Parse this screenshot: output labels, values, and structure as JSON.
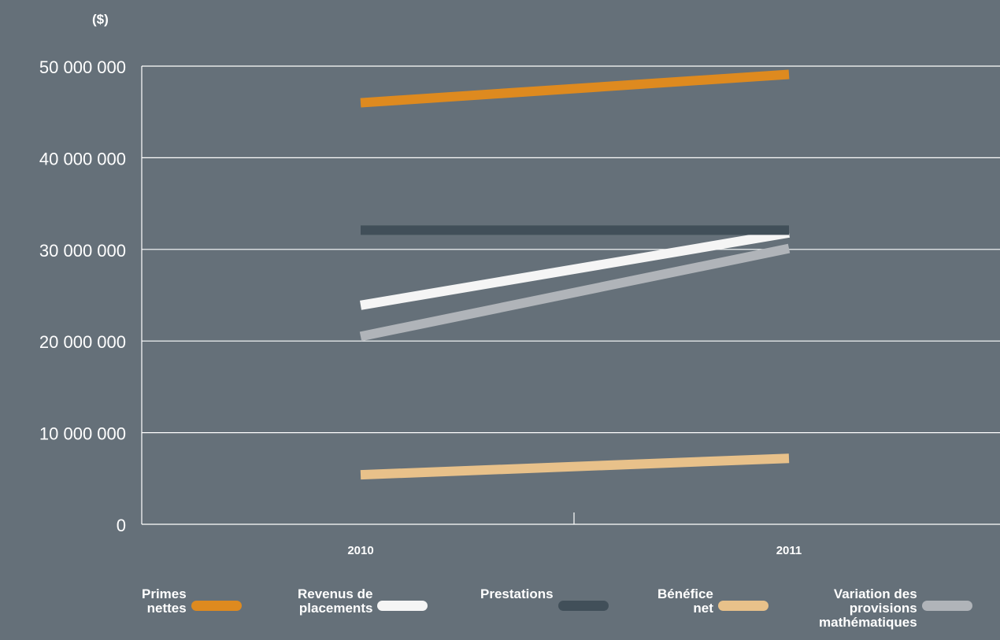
{
  "chart_data": {
    "type": "line",
    "ylabel": "($)",
    "categories": [
      "2010",
      "2011"
    ],
    "ylim": [
      0,
      50000000
    ],
    "yticks": [
      0,
      10000000,
      20000000,
      30000000,
      40000000,
      50000000
    ],
    "ytick_labels": [
      "0",
      "10 000 000",
      "20 000 000",
      "30 000 000",
      "40 000 000",
      "50 000 000"
    ],
    "grid": true,
    "legend_position": "bottom",
    "series": [
      {
        "name": "Primes nettes",
        "color": "#de8a1f",
        "values": [
          46000000,
          49100000
        ]
      },
      {
        "name": "Revenus de placements",
        "color": "#f5f5f5",
        "values": [
          23900000,
          31800000
        ]
      },
      {
        "name": "Prestations",
        "color": "#414f59",
        "values": [
          32100000,
          32100000
        ]
      },
      {
        "name": "Bénéfice net",
        "color": "#e8c18a",
        "values": [
          5400000,
          7200000
        ]
      },
      {
        "name": "Variation des provisions mathématiques",
        "color": "#b0b4b9",
        "values": [
          20500000,
          30100000
        ]
      }
    ]
  },
  "legend": [
    {
      "lines": [
        "Primes",
        "nettes"
      ]
    },
    {
      "lines": [
        "Revenus de",
        "placements"
      ]
    },
    {
      "lines": [
        "Prestations"
      ]
    },
    {
      "lines": [
        "Bénéfice",
        "net"
      ]
    },
    {
      "lines": [
        "Variation des",
        "provisions",
        "mathématiques"
      ]
    }
  ]
}
